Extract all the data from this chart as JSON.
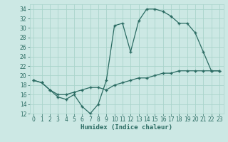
{
  "xlabel": "Humidex (Indice chaleur)",
  "bg_color": "#cce8e4",
  "grid_color": "#aad4cc",
  "line_color": "#2a6b62",
  "xlim": [
    -0.5,
    23.5
  ],
  "ylim": [
    12,
    35
  ],
  "yticks": [
    12,
    14,
    16,
    18,
    20,
    22,
    24,
    26,
    28,
    30,
    32,
    34
  ],
  "xticks": [
    0,
    1,
    2,
    3,
    4,
    5,
    6,
    7,
    8,
    9,
    10,
    11,
    12,
    13,
    14,
    15,
    16,
    17,
    18,
    19,
    20,
    21,
    22,
    23
  ],
  "upper_x": [
    0,
    1,
    2,
    3,
    4,
    5,
    6,
    7,
    8,
    9,
    10,
    11,
    12,
    13,
    14,
    15,
    16,
    17,
    18,
    19,
    20,
    21,
    22,
    23
  ],
  "upper_y": [
    19.0,
    18.5,
    17.0,
    15.5,
    15.0,
    16.0,
    13.5,
    12.0,
    14.0,
    19.0,
    30.5,
    31.0,
    25.0,
    31.5,
    34.0,
    34.0,
    33.5,
    32.5,
    31.0,
    31.0,
    29.0,
    25.0,
    21.0,
    21.0
  ],
  "lower_x": [
    0,
    1,
    2,
    3,
    4,
    5,
    6,
    7,
    8,
    9,
    10,
    11,
    12,
    13,
    14,
    15,
    16,
    17,
    18,
    19,
    20,
    21,
    22,
    23
  ],
  "lower_y": [
    19.0,
    18.5,
    17.0,
    16.0,
    16.0,
    16.5,
    17.0,
    17.5,
    17.5,
    17.0,
    18.0,
    18.5,
    19.0,
    19.5,
    19.5,
    20.0,
    20.5,
    20.5,
    21.0,
    21.0,
    21.0,
    21.0,
    21.0,
    21.0
  ],
  "xlabel_fontsize": 6.5,
  "tick_fontsize": 5.5
}
